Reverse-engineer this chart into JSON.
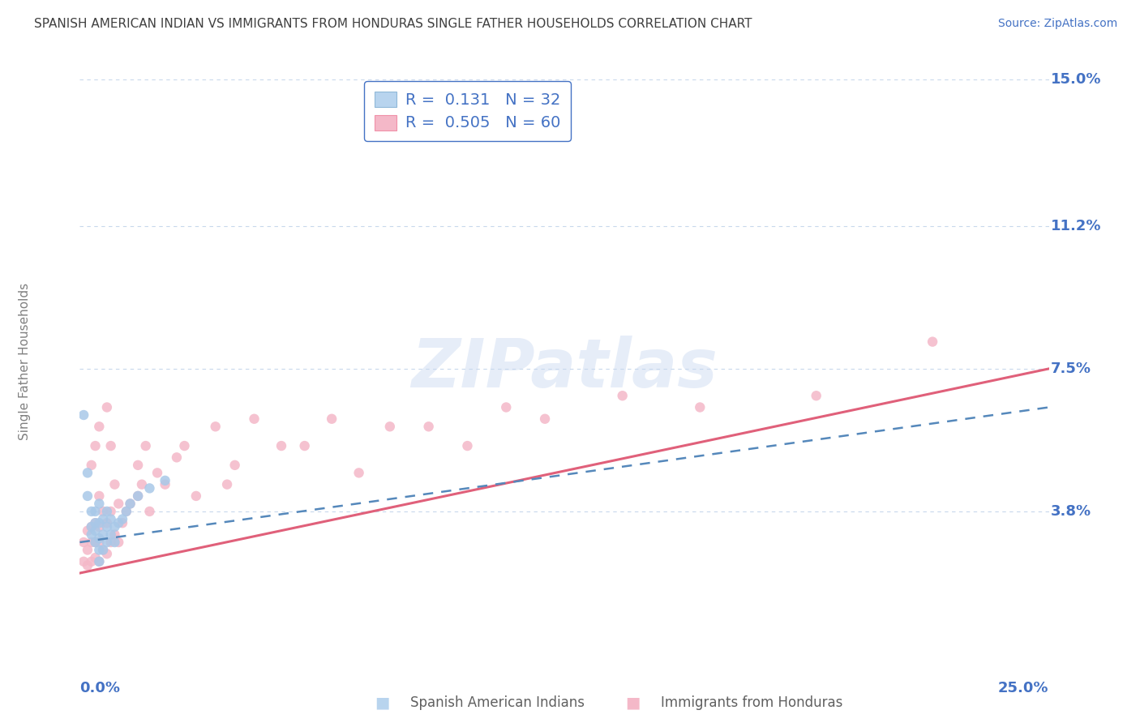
{
  "title": "SPANISH AMERICAN INDIAN VS IMMIGRANTS FROM HONDURAS SINGLE FATHER HOUSEHOLDS CORRELATION CHART",
  "source": "Source: ZipAtlas.com",
  "ylabel": "Single Father Households",
  "xlim": [
    0,
    0.25
  ],
  "ylim": [
    0,
    0.15
  ],
  "ytick_positions": [
    0.038,
    0.075,
    0.112,
    0.15
  ],
  "ytick_labels": [
    "3.8%",
    "7.5%",
    "11.2%",
    "15.0%"
  ],
  "series1_name": "Spanish American Indians",
  "series1_R": 0.131,
  "series1_N": 32,
  "series1_marker_color": "#a8c8e8",
  "series1_line_color": "#5588bb",
  "series1_legend_color": "#b8d4ee",
  "series2_name": "Immigrants from Honduras",
  "series2_R": 0.505,
  "series2_N": 60,
  "series2_marker_color": "#f4b8c8",
  "series2_line_color": "#e0607a",
  "series2_legend_color": "#f4b8c8",
  "watermark_text": "ZIPatlas",
  "background_color": "#ffffff",
  "grid_color": "#c8d8ec",
  "title_color": "#404040",
  "source_color": "#4472c4",
  "tick_label_color": "#4472c4",
  "ylabel_color": "#808080",
  "legend_border_color": "#4472c4",
  "blue_x": [
    0.001,
    0.002,
    0.002,
    0.003,
    0.003,
    0.003,
    0.004,
    0.004,
    0.004,
    0.004,
    0.005,
    0.005,
    0.005,
    0.005,
    0.006,
    0.006,
    0.006,
    0.007,
    0.007,
    0.007,
    0.008,
    0.008,
    0.009,
    0.009,
    0.01,
    0.011,
    0.012,
    0.013,
    0.015,
    0.018,
    0.022,
    0.005
  ],
  "blue_y": [
    0.063,
    0.042,
    0.048,
    0.032,
    0.034,
    0.038,
    0.03,
    0.033,
    0.035,
    0.038,
    0.028,
    0.031,
    0.035,
    0.04,
    0.028,
    0.032,
    0.036,
    0.03,
    0.034,
    0.038,
    0.032,
    0.036,
    0.03,
    0.034,
    0.035,
    0.036,
    0.038,
    0.04,
    0.042,
    0.044,
    0.046,
    0.025
  ],
  "pink_x": [
    0.001,
    0.001,
    0.002,
    0.002,
    0.002,
    0.003,
    0.003,
    0.003,
    0.003,
    0.004,
    0.004,
    0.004,
    0.004,
    0.005,
    0.005,
    0.005,
    0.005,
    0.005,
    0.006,
    0.006,
    0.007,
    0.007,
    0.007,
    0.008,
    0.008,
    0.008,
    0.009,
    0.009,
    0.01,
    0.01,
    0.011,
    0.012,
    0.013,
    0.015,
    0.015,
    0.016,
    0.017,
    0.018,
    0.02,
    0.022,
    0.025,
    0.027,
    0.03,
    0.035,
    0.038,
    0.04,
    0.045,
    0.052,
    0.058,
    0.065,
    0.072,
    0.08,
    0.09,
    0.1,
    0.11,
    0.12,
    0.14,
    0.16,
    0.19,
    0.22
  ],
  "pink_y": [
    0.025,
    0.03,
    0.024,
    0.028,
    0.033,
    0.025,
    0.03,
    0.034,
    0.05,
    0.026,
    0.03,
    0.035,
    0.055,
    0.025,
    0.03,
    0.034,
    0.042,
    0.06,
    0.028,
    0.038,
    0.027,
    0.035,
    0.065,
    0.03,
    0.038,
    0.055,
    0.032,
    0.045,
    0.03,
    0.04,
    0.035,
    0.038,
    0.04,
    0.042,
    0.05,
    0.045,
    0.055,
    0.038,
    0.048,
    0.045,
    0.052,
    0.055,
    0.042,
    0.06,
    0.045,
    0.05,
    0.062,
    0.055,
    0.055,
    0.062,
    0.048,
    0.06,
    0.06,
    0.055,
    0.065,
    0.062,
    0.068,
    0.065,
    0.068,
    0.082
  ],
  "blue_trend_x0": 0.0,
  "blue_trend_x1": 0.25,
  "blue_trend_y0": 0.03,
  "blue_trend_y1": 0.065,
  "pink_trend_x0": 0.0,
  "pink_trend_x1": 0.25,
  "pink_trend_y0": 0.022,
  "pink_trend_y1": 0.075
}
